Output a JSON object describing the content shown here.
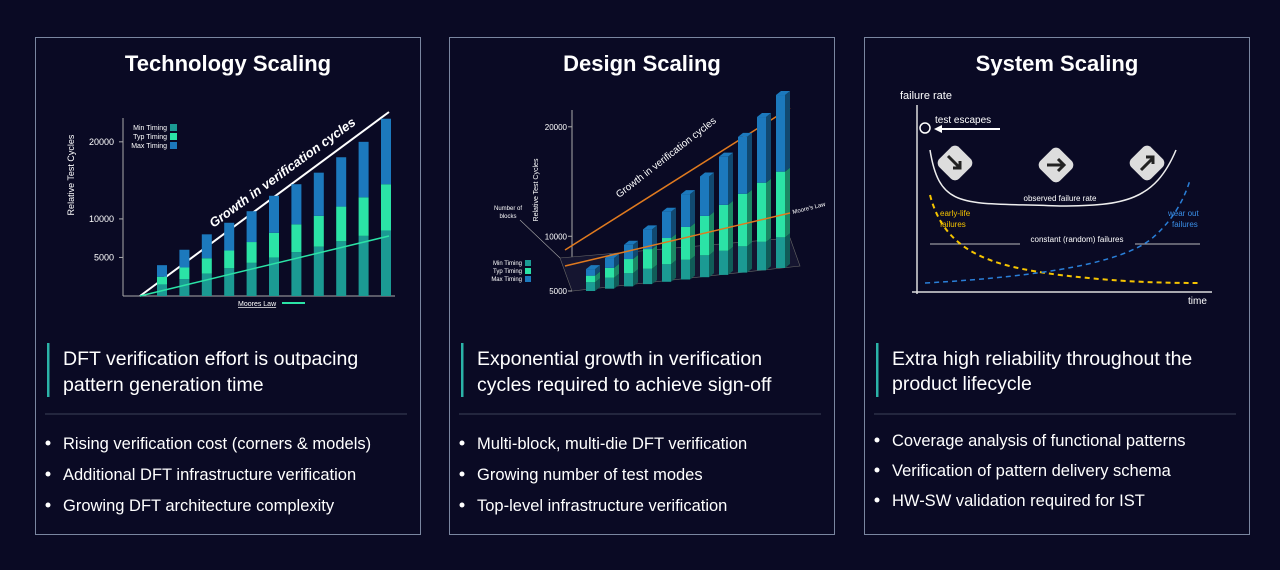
{
  "panels": [
    {
      "title": "Technology Scaling",
      "chart": {
        "type": "stacked_bar",
        "y_label": "Relative Test Cycles",
        "ylim": [
          0,
          24000
        ],
        "yticks": [
          5000,
          10000,
          20000
        ],
        "series": [
          {
            "name": "Min Timing",
            "color": "#1b9a93",
            "values": [
              1500,
              2200,
              2900,
              3600,
              4300,
              5000,
              5700,
              6400,
              7100,
              7800,
              8500
            ]
          },
          {
            "name": "Typ Timing",
            "color": "#2be3a6",
            "values": [
              1000,
              1500,
              2000,
              2300,
              2700,
              3200,
              3600,
              4000,
              4500,
              5000,
              6000
            ]
          },
          {
            "name": "Max Timing",
            "color": "#1c79bd",
            "values": [
              1500,
              2300,
              3100,
              3600,
              4000,
              4800,
              5200,
              5600,
              6400,
              7200,
              8500
            ]
          }
        ],
        "annotations": [
          "Growth in verification cycles",
          "Moores Law"
        ]
      },
      "headline": [
        "DFT verification effort is outpacing",
        "pattern generation time"
      ],
      "bullets": [
        "Rising verification cost (corners & models)",
        "Additional DFT infrastructure verification",
        "Growing DFT architecture complexity"
      ]
    },
    {
      "title": "Design Scaling",
      "chart": {
        "type": "bar3d",
        "y_label": "Relative Test Cycles",
        "depth_label": [
          "Number of",
          "blocks"
        ],
        "ylim": [
          5000,
          24000
        ],
        "yticks": [
          5000,
          10000,
          20000
        ],
        "series": [
          {
            "name": "Min Timing",
            "color": "#1b9a93",
            "values": [
              800,
              1000,
              1200,
              1400,
              1600,
              1800,
              2000,
              2200,
              2400,
              2600,
              2800
            ]
          },
          {
            "name": "Typ Timing",
            "color": "#2be3a6",
            "values": [
              600,
              900,
              1300,
              1800,
              2400,
              3000,
              3600,
              4200,
              4800,
              5400,
              6000
            ]
          },
          {
            "name": "Max Timing",
            "color": "#1c79bd",
            "values": [
              600,
              900,
              1300,
              1800,
              2400,
              3000,
              3600,
              4400,
              5200,
              6000,
              7000
            ]
          }
        ],
        "annotations": [
          "Growth in verification cycles",
          "Moore's Law"
        ]
      },
      "headline": [
        "Exponential growth in verification",
        "cycles required to achieve sign-off"
      ],
      "bullets": [
        "Multi-block, multi-die DFT verification",
        "Growing number of test modes",
        "Top-level infrastructure verification"
      ]
    },
    {
      "title": "System Scaling",
      "diagram": {
        "y_label": "failure rate",
        "x_label": "time",
        "escape_label": "test escapes",
        "observed_label": "observed failure rate",
        "early_label": [
          "early-life",
          "failures"
        ],
        "wear_label": [
          "wear out",
          "failures"
        ],
        "constant_label": "constant (random) failures"
      },
      "headline": [
        "Extra high reliability throughout the",
        "product lifecycle"
      ],
      "bullets": [
        "Coverage analysis of functional patterns",
        "Verification of pattern delivery schema",
        "HW-SW validation required for IST"
      ]
    }
  ]
}
